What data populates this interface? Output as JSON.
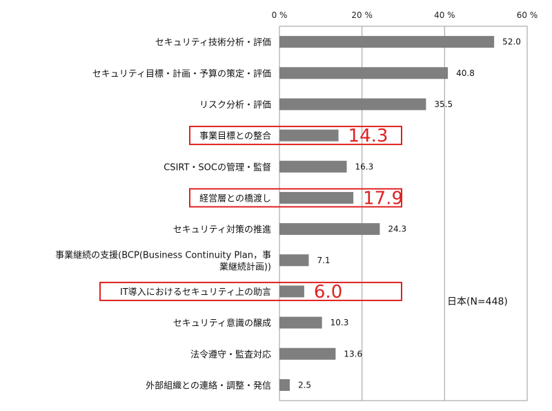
{
  "chart_data": {
    "type": "bar",
    "orientation": "horizontal",
    "title": "",
    "xlabel": "",
    "ylabel": "",
    "xlim": [
      0,
      60
    ],
    "tick_values": [
      0,
      20,
      40,
      60
    ],
    "tick_labels": [
      "0 %",
      "20 %",
      "40 %",
      "60 %"
    ],
    "grid": true,
    "bar_color": "#7f7f7f",
    "highlight_color": "#e02020",
    "categories": [
      "セキュリティ技術分析・評価",
      "セキュリティ目標・計画・予算の策定・評価",
      "リスク分析・評価",
      "事業目標との整合",
      "CSIRT・SOCの管理・監督",
      "経営層との橋渡し",
      "セキュリティ対策の推進",
      "事業継続の支援(BCP(Business Continuity Plan，事業継続計画))",
      "IT導入におけるセキュリティ上の助言",
      "セキュリティ意識の醸成",
      "法令遵守・監査対応",
      "外部組織との連絡・調整・発信"
    ],
    "category_display_lines": [
      [
        "セキュリティ技術分析・評価"
      ],
      [
        "セキュリティ目標・計画・予算の策定・評価"
      ],
      [
        "リスク分析・評価"
      ],
      [
        "事業目標との整合"
      ],
      [
        "CSIRT・SOCの管理・監督"
      ],
      [
        "経営層との橋渡し"
      ],
      [
        "セキュリティ対策の推進"
      ],
      [
        "事業継続の支援(BCP(Business Continuity Plan，事",
        "業継続計画))"
      ],
      [
        "IT導入におけるセキュリティ上の助言"
      ],
      [
        "セキュリティ意識の醸成"
      ],
      [
        "法令遵守・監査対応"
      ],
      [
        "外部組織との連絡・調整・発信"
      ]
    ],
    "values": [
      52.0,
      40.8,
      35.5,
      14.3,
      16.3,
      17.9,
      24.3,
      7.1,
      6.0,
      10.3,
      13.6,
      2.5
    ],
    "value_labels": [
      "52.0",
      "40.8",
      "35.5",
      "14.3",
      "16.3",
      "17.9",
      "24.3",
      "7.1",
      "6.0",
      "10.3",
      "13.6",
      "2.5"
    ],
    "highlighted": [
      false,
      false,
      false,
      true,
      false,
      true,
      false,
      false,
      true,
      false,
      false,
      false
    ],
    "legend_text": "日本(N=448)"
  }
}
